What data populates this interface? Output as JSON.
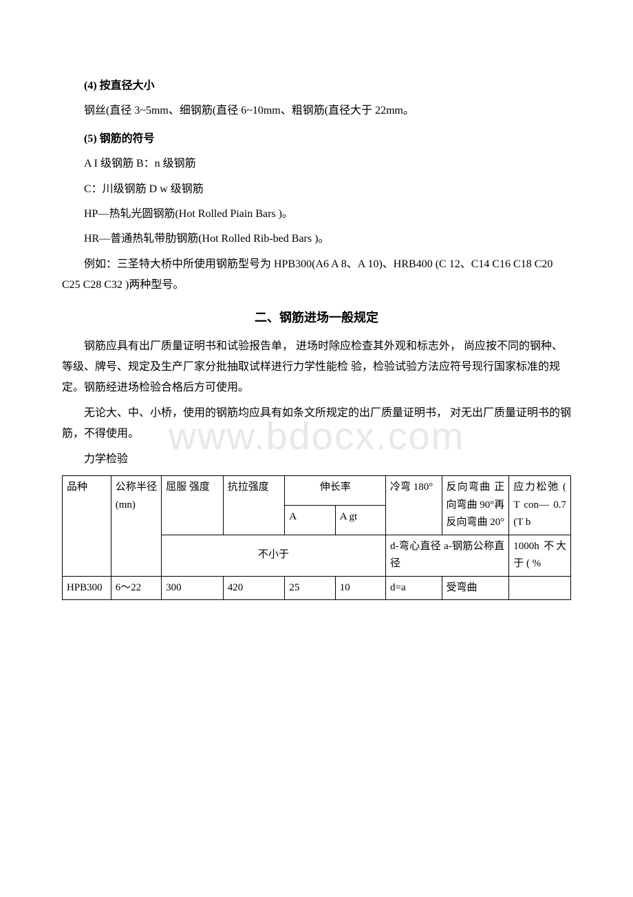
{
  "watermark": "www.bdocx.com",
  "sec4": {
    "title": "(4) 按直径大小",
    "text": "钢丝(直径 3~5mm、细钢筋(直径 6~10mm、粗钢筋(直径大于 22mm。"
  },
  "sec5": {
    "title": "(5) 钢筋的符号",
    "line1": "A I 级钢筋 B：n 级钢筋",
    "line2": "C：川级钢筋 D w 级钢筋",
    "line3": "HP—热轧光圆钢筋(Hot Rolled Piain Bars )。",
    "line4": "HR—普通热轧带肋钢筋(Hot Rolled Rib-bed Bars )。",
    "line5": "例如：三圣特大桥中所使用钢筋型号为 HPB300(A6 A 8、A 10)、HRB400 (C 12、C14 C16 C18 C20 C25 C28 C32 )两种型号。"
  },
  "section2": {
    "title": "二、钢筋进场一般规定",
    "para1": "钢筋应具有出厂质量证明书和试验报告单， 进场时除应检查其外观和标志外， 尚应按不同的钢种、等级、牌号、规定及生产厂家分批抽取试样进行力学性能检 验，检验试验方法应符号现行国家标准的规定。钢筋经进场检验合格后方可使用。",
    "para2": "无论大、中、小桥，使用的钢筋均应具有如条文所规定的出厂质量证明书， 对无出厂质量证明书的钢筋，不得使用。",
    "para3": "力学检验"
  },
  "table": {
    "header": {
      "c1": "品种",
      "c2": "公称半径(mn)",
      "c3": "屈服 强度",
      "c4": "抗拉强度",
      "c5_top": "伸长率",
      "c5a": "A",
      "c5b": "A gt",
      "c6": "冷弯 180°",
      "c7": "反向弯曲 正向弯曲 90°再反向弯曲 20°",
      "c8": "应力松弛 ( T con— 0.7 (T b"
    },
    "row2": {
      "merged_left": "不小于",
      "c6_7": "d-弯心直径 a-钢筋公称直径",
      "c8": "1000h 不大于 ( %"
    },
    "row3": {
      "c1": "HPB300",
      "c2": "6～22",
      "c3": "300",
      "c4": "420",
      "c5a": "25",
      "c5b": "10",
      "c6": "d=a",
      "c7": "受弯曲",
      "c8": ""
    }
  }
}
